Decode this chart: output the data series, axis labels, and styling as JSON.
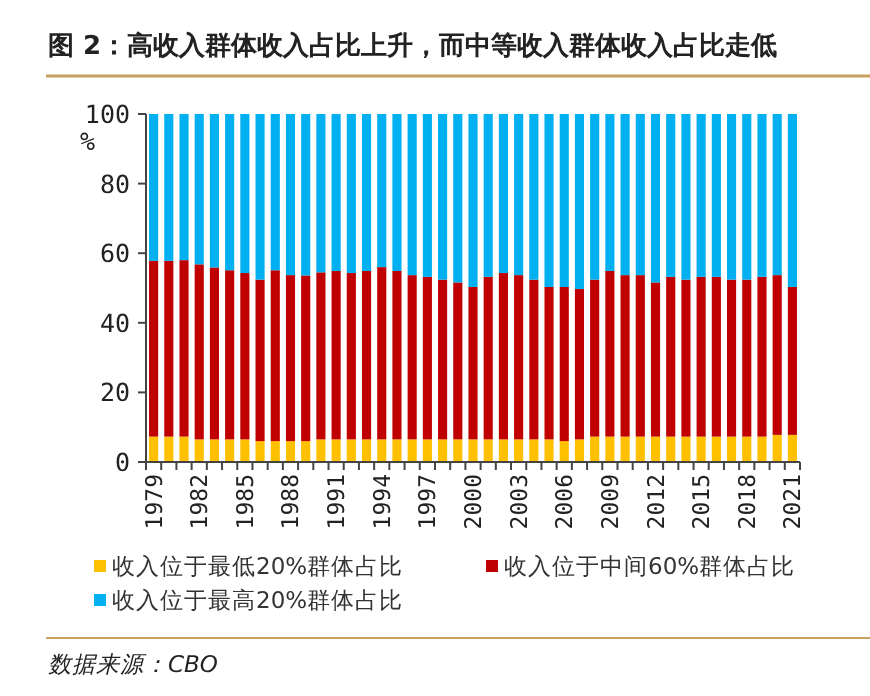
{
  "chart_data": {
    "type": "bar",
    "stacked": true,
    "title": "图 2：高收入群体收入占比上升，而中等收入群体收入占比走低",
    "ylabel": "%",
    "categories": [
      "1979",
      null,
      null,
      "1982",
      null,
      null,
      "1985",
      null,
      null,
      "1988",
      null,
      null,
      "1991",
      null,
      null,
      "1994",
      null,
      null,
      "1997",
      null,
      null,
      "2000",
      null,
      null,
      "2003",
      null,
      null,
      "2006",
      null,
      null,
      "2009",
      null,
      null,
      "2012",
      null,
      null,
      "2015",
      null,
      null,
      "2018",
      null,
      null,
      "2021"
    ],
    "series": [
      {
        "name": "收入位于最低20%群体占比",
        "color": "#ffc000",
        "values": [
          7.3,
          7.3,
          7.3,
          6.5,
          6.5,
          6.5,
          6.5,
          6.0,
          6.0,
          6.0,
          6.0,
          6.5,
          6.5,
          6.5,
          6.5,
          6.5,
          6.5,
          6.5,
          6.5,
          6.5,
          6.5,
          6.5,
          6.5,
          6.5,
          6.5,
          6.5,
          6.5,
          6.0,
          6.5,
          7.3,
          7.3,
          7.3,
          7.3,
          7.3,
          7.3,
          7.3,
          7.3,
          7.3,
          7.3,
          7.3,
          7.3,
          7.8,
          7.8
        ]
      },
      {
        "name": "收入位于中间60%群体占比",
        "color": "#c00000",
        "values": [
          50.5,
          50.5,
          50.7,
          50.3,
          49.4,
          48.6,
          47.8,
          46.4,
          49.1,
          47.7,
          47.6,
          48.0,
          48.4,
          47.8,
          48.4,
          49.5,
          48.4,
          47.2,
          46.7,
          45.9,
          45.1,
          43.8,
          46.7,
          47.8,
          47.2,
          45.9,
          43.8,
          44.3,
          43.2,
          45.1,
          47.6,
          46.4,
          46.4,
          44.3,
          45.9,
          45.1,
          45.9,
          45.9,
          45.1,
          45.1,
          45.9,
          45.9,
          42.5
        ]
      },
      {
        "name": "收入位于最高20%群体占比",
        "color": "#00b0f0",
        "values": [
          42.2,
          42.2,
          42.0,
          43.2,
          44.1,
          44.9,
          45.7,
          47.6,
          44.9,
          46.3,
          46.4,
          45.5,
          45.1,
          45.7,
          45.1,
          44.0,
          45.1,
          46.3,
          46.8,
          47.6,
          48.4,
          49.7,
          46.8,
          45.7,
          46.3,
          47.6,
          49.7,
          49.7,
          50.3,
          47.6,
          45.1,
          46.3,
          46.3,
          48.4,
          46.8,
          47.6,
          46.8,
          46.8,
          47.6,
          47.6,
          46.8,
          46.3,
          49.7
        ]
      }
    ],
    "ylim": [
      0,
      100
    ],
    "yticks": [
      0,
      20,
      40,
      60,
      80,
      100
    ],
    "grid": false,
    "legend": "bottom",
    "annotations": [
      "数据来源：CBO"
    ]
  }
}
